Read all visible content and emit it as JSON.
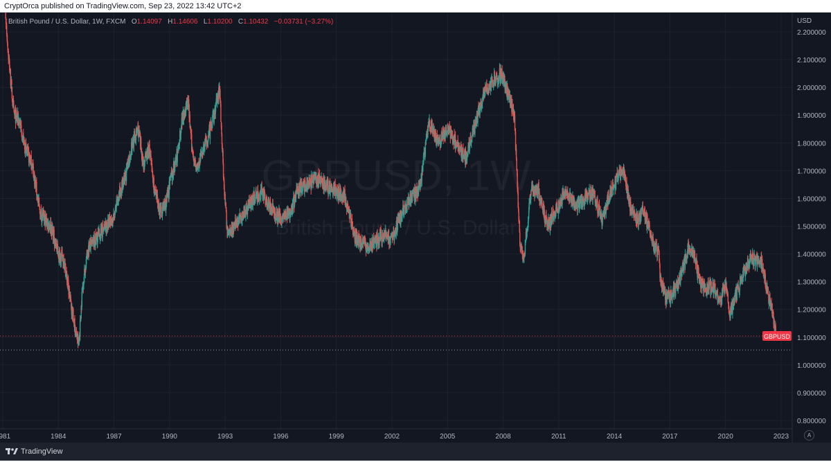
{
  "header": {
    "published_text": "CryptOrca published on TradingView.com, Sep 23, 2022 13:42 UTC+2"
  },
  "legend": {
    "symbol_text": "British Pound / U.S. Dollar, 1W, FXCM",
    "open_label": "O",
    "open_value": "1.14097",
    "high_label": "H",
    "high_value": "1.14606",
    "low_label": "L",
    "low_value": "1.10200",
    "close_label": "C",
    "close_value": "1.10432",
    "change_value": "−0.03731 (−3.27%)"
  },
  "watermark": {
    "line1": "GBPUSD, 1W",
    "line2": "British Pound / U.S. Dollar"
  },
  "price_tag": {
    "label": "GBPUSD",
    "value": 1.10432,
    "color": "#f23645"
  },
  "footer": {
    "brand": "TradingView",
    "auto_label": "A"
  },
  "colors": {
    "up": "#26a69a",
    "down": "#ef5350",
    "background": "#131722",
    "grid": "#1e222d",
    "axis_text": "#b2b5be"
  },
  "chart_data": {
    "type": "line",
    "style": "candlestick",
    "title": "British Pound / U.S. Dollar, 1W, FXCM",
    "ylabel": "USD",
    "ylim": [
      0.77,
      2.27
    ],
    "xlim": [
      1980.85,
      2023.6
    ],
    "x_ticks": [
      "1981",
      "1984",
      "1987",
      "1990",
      "1993",
      "1996",
      "1999",
      "2002",
      "2005",
      "2008",
      "2011",
      "2014",
      "2017",
      "2020",
      "2023"
    ],
    "y_ticks": [
      "0.800000",
      "0.900000",
      "1.000000",
      "1.100000",
      "1.200000",
      "1.300000",
      "1.400000",
      "1.500000",
      "1.600000",
      "1.700000",
      "1.800000",
      "1.900000",
      "2.000000",
      "2.100000",
      "2.200000"
    ],
    "grid": true,
    "current_price": 1.10432,
    "all_time_low_line": 1.054,
    "series": [
      {
        "name": "GBPUSD",
        "x": [
          1981.0,
          1981.3,
          1981.6,
          1981.9,
          1982.2,
          1982.6,
          1983.0,
          1983.3,
          1983.6,
          1984.0,
          1984.3,
          1984.6,
          1984.9,
          1985.1,
          1985.3,
          1985.6,
          1985.9,
          1986.3,
          1986.6,
          1987.0,
          1987.3,
          1987.6,
          1988.0,
          1988.3,
          1988.6,
          1988.9,
          1989.2,
          1989.5,
          1989.8,
          1990.1,
          1990.4,
          1990.7,
          1991.0,
          1991.2,
          1991.5,
          1991.8,
          1992.1,
          1992.4,
          1992.7,
          1992.9,
          1993.1,
          1993.5,
          1994.0,
          1994.5,
          1995.0,
          1995.5,
          1996.0,
          1996.5,
          1997.0,
          1997.5,
          1998.0,
          1998.5,
          1999.0,
          1999.5,
          2000.0,
          2000.5,
          2000.8,
          2001.2,
          2001.6,
          2002.0,
          2002.5,
          2003.0,
          2003.5,
          2004.0,
          2004.5,
          2005.0,
          2005.5,
          2006.0,
          2006.5,
          2007.0,
          2007.5,
          2007.9,
          2008.3,
          2008.6,
          2008.9,
          2009.1,
          2009.5,
          2009.9,
          2010.4,
          2010.9,
          2011.4,
          2011.9,
          2012.4,
          2012.9,
          2013.3,
          2013.8,
          2014.2,
          2014.5,
          2014.9,
          2015.3,
          2015.6,
          2016.0,
          2016.4,
          2016.5,
          2016.8,
          2017.2,
          2017.6,
          2018.0,
          2018.3,
          2018.6,
          2019.0,
          2019.4,
          2019.7,
          2020.0,
          2020.2,
          2020.5,
          2020.9,
          2021.3,
          2021.7,
          2022.0,
          2022.3,
          2022.5,
          2022.73
        ],
        "values": [
          2.4,
          2.12,
          1.9,
          1.88,
          1.78,
          1.72,
          1.55,
          1.52,
          1.5,
          1.4,
          1.38,
          1.25,
          1.13,
          1.07,
          1.28,
          1.42,
          1.44,
          1.48,
          1.5,
          1.53,
          1.62,
          1.67,
          1.8,
          1.85,
          1.72,
          1.78,
          1.62,
          1.55,
          1.58,
          1.68,
          1.75,
          1.9,
          1.95,
          1.78,
          1.7,
          1.78,
          1.82,
          1.9,
          2.0,
          1.7,
          1.48,
          1.5,
          1.55,
          1.6,
          1.62,
          1.56,
          1.53,
          1.55,
          1.64,
          1.65,
          1.67,
          1.64,
          1.63,
          1.6,
          1.45,
          1.44,
          1.42,
          1.45,
          1.47,
          1.45,
          1.54,
          1.6,
          1.64,
          1.88,
          1.8,
          1.85,
          1.8,
          1.74,
          1.87,
          1.98,
          2.03,
          2.05,
          1.97,
          1.9,
          1.45,
          1.38,
          1.62,
          1.63,
          1.5,
          1.56,
          1.63,
          1.57,
          1.6,
          1.62,
          1.52,
          1.62,
          1.68,
          1.7,
          1.56,
          1.52,
          1.56,
          1.45,
          1.4,
          1.3,
          1.24,
          1.26,
          1.32,
          1.42,
          1.4,
          1.3,
          1.28,
          1.28,
          1.22,
          1.3,
          1.18,
          1.24,
          1.32,
          1.38,
          1.38,
          1.36,
          1.25,
          1.2,
          1.104
        ]
      }
    ]
  }
}
